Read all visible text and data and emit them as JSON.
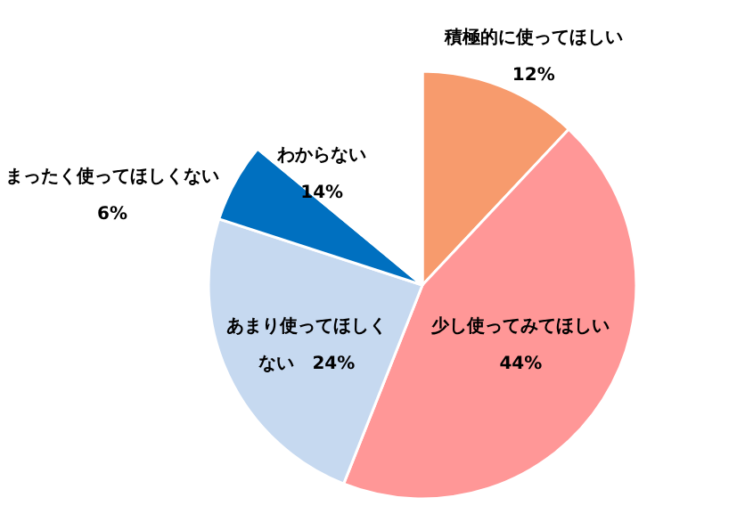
{
  "chart_data": {
    "type": "pie",
    "categories": [
      "積極的に使ってほしい",
      "少し使ってみてほしい",
      "あまり使ってほしくない",
      "まったく使ってほしくない",
      "わからない"
    ],
    "values": [
      12,
      44,
      24,
      6,
      14
    ],
    "value_labels": [
      "12%",
      "44%",
      "24%",
      "6%",
      "14%"
    ],
    "colors": [
      "#f79b6d",
      "#ff9797",
      "#c6d9f0",
      "#0070c0",
      "#ffffff"
    ]
  }
}
